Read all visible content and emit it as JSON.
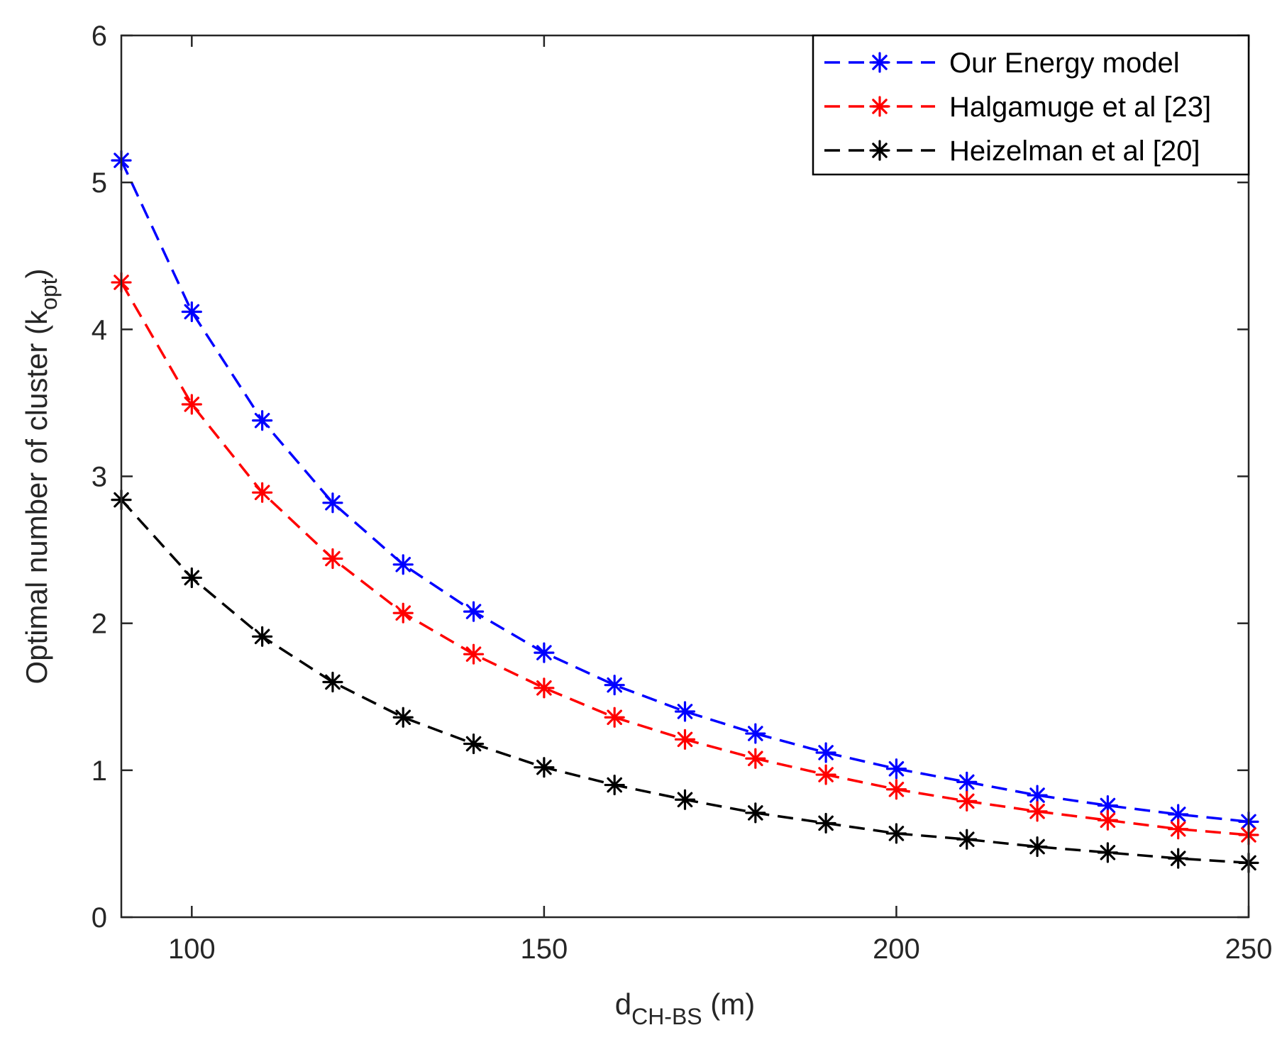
{
  "chart_data": {
    "type": "line",
    "title": "",
    "xlabel": {
      "main": "d",
      "sub": "CH-BS",
      "unit": " (m)"
    },
    "ylabel": {
      "main": "Optimal number of cluster (k",
      "sub": "opt",
      "close": ")"
    },
    "xlim": [
      90,
      250
    ],
    "ylim": [
      0,
      6
    ],
    "x_ticks": [
      100,
      150,
      200,
      250
    ],
    "y_ticks": [
      0,
      1,
      2,
      3,
      4,
      5,
      6
    ],
    "x_tick_labels": [
      "100",
      "150",
      "200",
      "250"
    ],
    "y_tick_labels": [
      "0",
      "1",
      "2",
      "3",
      "4",
      "5",
      "6"
    ],
    "grid": false,
    "legend_position": "top-right",
    "x": [
      90,
      100,
      110,
      120,
      130,
      140,
      150,
      160,
      170,
      180,
      190,
      200,
      210,
      220,
      230,
      240,
      250
    ],
    "series": [
      {
        "name": "Our Energy model",
        "color": "#0000ff",
        "marker": "asterisk",
        "line_style": "dashed",
        "values": [
          5.15,
          4.12,
          3.38,
          2.82,
          2.4,
          2.08,
          1.8,
          1.58,
          1.4,
          1.25,
          1.12,
          1.01,
          0.92,
          0.83,
          0.76,
          0.7,
          0.65
        ]
      },
      {
        "name": "Halgamuge et al [23]",
        "color": "#ff0000",
        "marker": "asterisk",
        "line_style": "dashed",
        "values": [
          4.32,
          3.49,
          2.89,
          2.44,
          2.07,
          1.79,
          1.56,
          1.36,
          1.21,
          1.08,
          0.97,
          0.87,
          0.79,
          0.72,
          0.66,
          0.6,
          0.56
        ]
      },
      {
        "name": "Heizelman et al [20]",
        "color": "#000000",
        "marker": "asterisk",
        "line_style": "dashed",
        "values": [
          2.84,
          2.31,
          1.91,
          1.6,
          1.36,
          1.18,
          1.02,
          0.9,
          0.8,
          0.71,
          0.64,
          0.57,
          0.53,
          0.48,
          0.44,
          0.4,
          0.37
        ]
      }
    ]
  }
}
